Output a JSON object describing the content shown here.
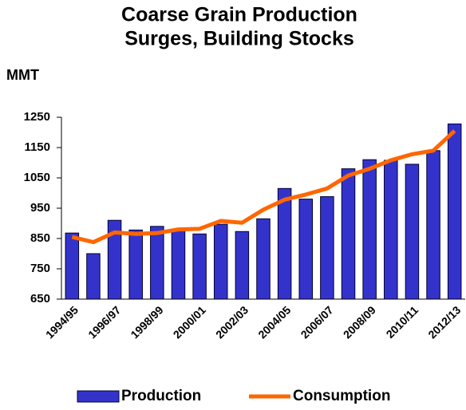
{
  "chart_data": {
    "type": "bar_line",
    "title": [
      "Coarse Grain Production",
      "Surges, Building Stocks"
    ],
    "y_label": "MMT",
    "categories": [
      "1994/95",
      null,
      "1996/97",
      null,
      "1998/99",
      null,
      "2000/01",
      null,
      "2002/03",
      null,
      "2004/05",
      null,
      "2006/07",
      null,
      "2008/09",
      null,
      "2010/11",
      null,
      "2012/13"
    ],
    "series": [
      {
        "name": "Production",
        "type": "bar",
        "color": "#3333cc",
        "values": [
          868,
          800,
          910,
          878,
          890,
          878,
          865,
          897,
          873,
          915,
          1015,
          980,
          988,
          1080,
          1110,
          1108,
          1095,
          1140,
          1228
        ]
      },
      {
        "name": "Consumption",
        "type": "line",
        "color": "#ff6600",
        "values": [
          855,
          838,
          870,
          865,
          868,
          880,
          882,
          908,
          902,
          945,
          978,
          995,
          1015,
          1058,
          1080,
          1108,
          1128,
          1140,
          1205
        ]
      }
    ],
    "ylim": [
      650,
      1250
    ],
    "yticks": [
      650,
      750,
      850,
      950,
      1050,
      1150,
      1250
    ]
  }
}
